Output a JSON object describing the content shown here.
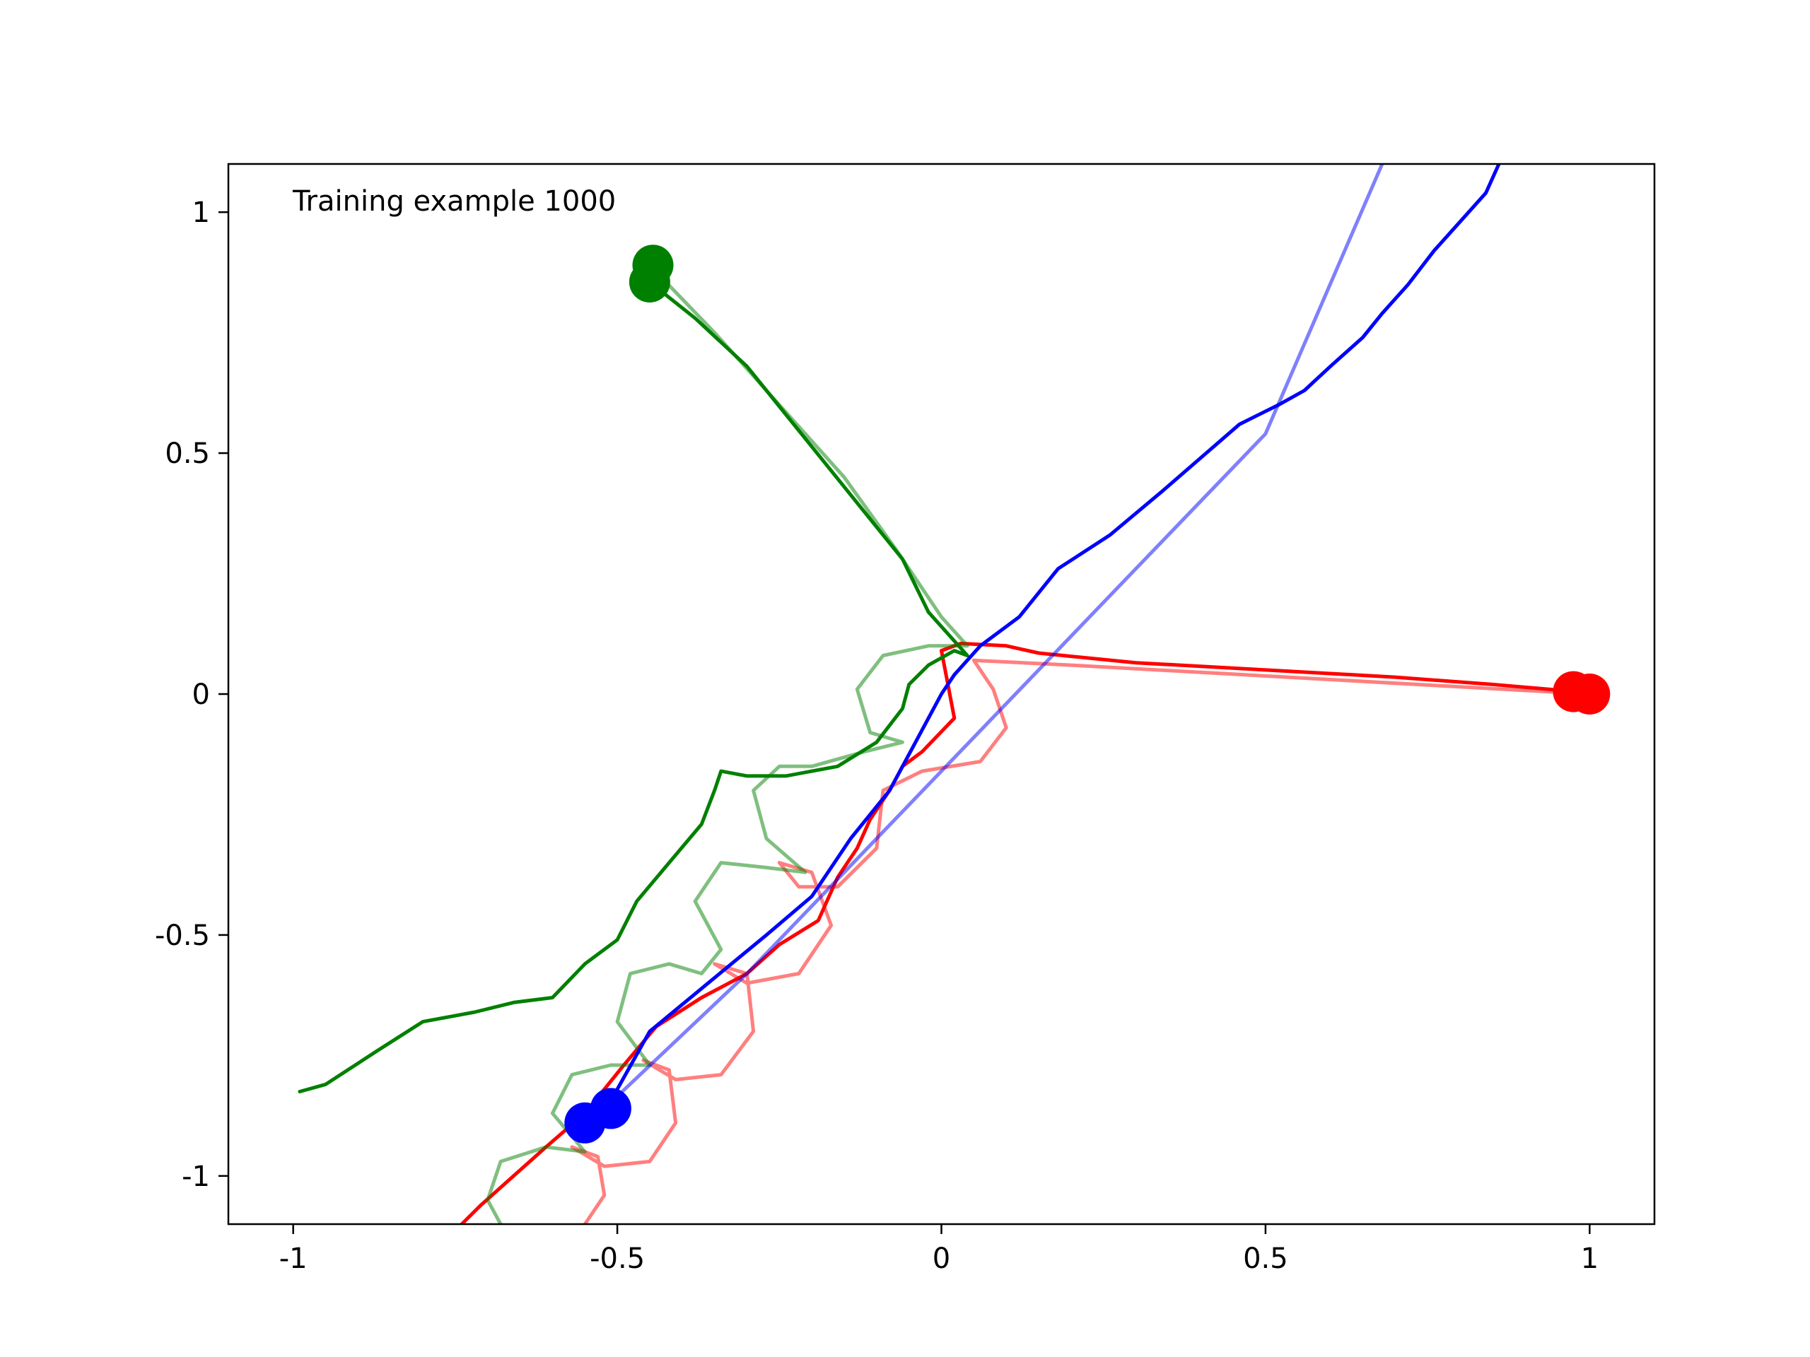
{
  "chart_data": {
    "type": "line",
    "title": "",
    "xlabel": "",
    "ylabel": "",
    "xlim": [
      -1.1,
      1.1
    ],
    "ylim": [
      -1.1,
      1.1
    ],
    "xticks": [
      -1,
      -0.5,
      0,
      0.5,
      1
    ],
    "xtick_labels": [
      "-1",
      "-0.5",
      "0",
      "0.5",
      "1"
    ],
    "yticks": [
      -1,
      -0.5,
      0,
      0.5,
      1
    ],
    "ytick_labels": [
      "-1",
      "-0.5",
      "0",
      "0.5",
      "1"
    ],
    "grid": false,
    "legend": "none",
    "annotation": "Training example 1000",
    "series": [
      {
        "color": "#ff0000",
        "style": "faded",
        "points": [
          [
            1.0,
            0.0
          ],
          [
            0.8,
            0.015
          ],
          [
            0.6,
            0.03
          ],
          [
            0.4,
            0.045
          ],
          [
            0.2,
            0.06
          ],
          [
            0.05,
            0.07
          ],
          [
            0.08,
            0.01
          ],
          [
            0.1,
            -0.07
          ],
          [
            0.06,
            -0.14
          ],
          [
            -0.03,
            -0.16
          ],
          [
            -0.09,
            -0.2
          ],
          [
            -0.1,
            -0.32
          ],
          [
            -0.16,
            -0.4
          ],
          [
            -0.22,
            -0.4
          ],
          [
            -0.25,
            -0.35
          ],
          [
            -0.2,
            -0.37
          ],
          [
            -0.17,
            -0.48
          ],
          [
            -0.22,
            -0.58
          ],
          [
            -0.3,
            -0.6
          ],
          [
            -0.35,
            -0.56
          ],
          [
            -0.3,
            -0.58
          ],
          [
            -0.29,
            -0.7
          ],
          [
            -0.34,
            -0.79
          ],
          [
            -0.41,
            -0.8
          ],
          [
            -0.46,
            -0.76
          ],
          [
            -0.42,
            -0.78
          ],
          [
            -0.41,
            -0.89
          ],
          [
            -0.45,
            -0.97
          ],
          [
            -0.52,
            -0.98
          ],
          [
            -0.57,
            -0.94
          ],
          [
            -0.53,
            -0.96
          ],
          [
            -0.52,
            -1.04
          ],
          [
            -0.55,
            -1.1
          ]
        ]
      },
      {
        "color": "#ff0000",
        "style": "solid",
        "points": [
          [
            0.98,
            0.005
          ],
          [
            0.85,
            0.02
          ],
          [
            0.7,
            0.035
          ],
          [
            0.5,
            0.05
          ],
          [
            0.3,
            0.065
          ],
          [
            0.15,
            0.085
          ],
          [
            0.1,
            0.1
          ],
          [
            0.03,
            0.105
          ],
          [
            0.0,
            0.09
          ],
          [
            0.01,
            0.02
          ],
          [
            0.02,
            -0.05
          ],
          [
            -0.03,
            -0.12
          ],
          [
            -0.06,
            -0.15
          ],
          [
            -0.08,
            -0.2
          ],
          [
            -0.11,
            -0.26
          ],
          [
            -0.13,
            -0.32
          ],
          [
            -0.16,
            -0.38
          ],
          [
            -0.19,
            -0.47
          ],
          [
            -0.25,
            -0.52
          ],
          [
            -0.3,
            -0.58
          ],
          [
            -0.37,
            -0.63
          ],
          [
            -0.44,
            -0.69
          ],
          [
            -0.49,
            -0.77
          ],
          [
            -0.55,
            -0.87
          ],
          [
            -0.61,
            -0.94
          ],
          [
            -0.66,
            -1.0
          ],
          [
            -0.71,
            -1.06
          ],
          [
            -0.74,
            -1.1
          ]
        ]
      },
      {
        "color": "#008000",
        "style": "faded",
        "points": [
          [
            -0.45,
            0.89
          ],
          [
            -0.35,
            0.75
          ],
          [
            -0.25,
            0.6
          ],
          [
            -0.15,
            0.45
          ],
          [
            -0.07,
            0.3
          ],
          [
            0.0,
            0.16
          ],
          [
            0.04,
            0.1
          ],
          [
            -0.02,
            0.1
          ],
          [
            -0.09,
            0.08
          ],
          [
            -0.13,
            0.01
          ],
          [
            -0.11,
            -0.08
          ],
          [
            -0.06,
            -0.1
          ],
          [
            -0.12,
            -0.12
          ],
          [
            -0.2,
            -0.15
          ],
          [
            -0.25,
            -0.15
          ],
          [
            -0.29,
            -0.2
          ],
          [
            -0.27,
            -0.3
          ],
          [
            -0.21,
            -0.37
          ],
          [
            -0.27,
            -0.36
          ],
          [
            -0.34,
            -0.35
          ],
          [
            -0.38,
            -0.43
          ],
          [
            -0.34,
            -0.53
          ],
          [
            -0.37,
            -0.58
          ],
          [
            -0.42,
            -0.56
          ],
          [
            -0.48,
            -0.58
          ],
          [
            -0.5,
            -0.68
          ],
          [
            -0.45,
            -0.77
          ],
          [
            -0.51,
            -0.77
          ],
          [
            -0.57,
            -0.79
          ],
          [
            -0.6,
            -0.87
          ],
          [
            -0.55,
            -0.95
          ],
          [
            -0.61,
            -0.94
          ],
          [
            -0.68,
            -0.97
          ],
          [
            -0.7,
            -1.05
          ],
          [
            -0.68,
            -1.1
          ]
        ]
      },
      {
        "color": "#008000",
        "style": "solid",
        "points": [
          [
            -0.45,
            0.855
          ],
          [
            -0.38,
            0.78
          ],
          [
            -0.3,
            0.68
          ],
          [
            -0.24,
            0.58
          ],
          [
            -0.18,
            0.48
          ],
          [
            -0.12,
            0.38
          ],
          [
            -0.06,
            0.28
          ],
          [
            -0.02,
            0.17
          ],
          [
            0.04,
            0.08
          ],
          [
            0.02,
            0.09
          ],
          [
            -0.02,
            0.06
          ],
          [
            -0.05,
            0.02
          ],
          [
            -0.06,
            -0.03
          ],
          [
            -0.1,
            -0.1
          ],
          [
            -0.16,
            -0.15
          ],
          [
            -0.24,
            -0.17
          ],
          [
            -0.3,
            -0.17
          ],
          [
            -0.34,
            -0.16
          ],
          [
            -0.35,
            -0.2
          ],
          [
            -0.37,
            -0.27
          ],
          [
            -0.42,
            -0.35
          ],
          [
            -0.47,
            -0.43
          ],
          [
            -0.5,
            -0.51
          ],
          [
            -0.55,
            -0.56
          ],
          [
            -0.6,
            -0.63
          ],
          [
            -0.66,
            -0.64
          ],
          [
            -0.72,
            -0.66
          ],
          [
            -0.8,
            -0.68
          ],
          [
            -0.87,
            -0.74
          ],
          [
            -0.95,
            -0.81
          ],
          [
            -0.99,
            -0.825
          ]
        ]
      },
      {
        "color": "#0000ff",
        "style": "faded",
        "points": [
          [
            -0.52,
            -0.86
          ],
          [
            -0.3,
            -0.58
          ],
          [
            -0.1,
            -0.3
          ],
          [
            0.1,
            -0.02
          ],
          [
            0.3,
            0.26
          ],
          [
            0.5,
            0.54
          ],
          [
            0.68,
            1.1
          ]
        ]
      },
      {
        "color": "#0000ff",
        "style": "solid",
        "points": [
          [
            -0.55,
            -0.89
          ],
          [
            -0.5,
            -0.82
          ],
          [
            -0.45,
            -0.7
          ],
          [
            -0.36,
            -0.6
          ],
          [
            -0.27,
            -0.5
          ],
          [
            -0.2,
            -0.42
          ],
          [
            -0.14,
            -0.3
          ],
          [
            -0.08,
            -0.2
          ],
          [
            -0.02,
            -0.05
          ],
          [
            0.0,
            0.0
          ],
          [
            0.02,
            0.04
          ],
          [
            0.06,
            0.1
          ],
          [
            0.12,
            0.16
          ],
          [
            0.18,
            0.26
          ],
          [
            0.26,
            0.33
          ],
          [
            0.34,
            0.42
          ],
          [
            0.4,
            0.49
          ],
          [
            0.46,
            0.56
          ],
          [
            0.52,
            0.6
          ],
          [
            0.56,
            0.63
          ],
          [
            0.6,
            0.68
          ],
          [
            0.65,
            0.74
          ],
          [
            0.68,
            0.79
          ],
          [
            0.72,
            0.85
          ],
          [
            0.76,
            0.92
          ],
          [
            0.8,
            0.98
          ],
          [
            0.84,
            1.04
          ],
          [
            0.86,
            1.1
          ]
        ]
      }
    ],
    "markers": [
      {
        "color": "#ff0000",
        "points": [
          [
            0.975,
            0.005
          ],
          [
            1.0,
            0.0
          ]
        ]
      },
      {
        "color": "#008000",
        "points": [
          [
            -0.445,
            0.89
          ],
          [
            -0.45,
            0.855
          ]
        ]
      },
      {
        "color": "#0000ff",
        "points": [
          [
            -0.51,
            -0.86
          ],
          [
            -0.55,
            -0.89
          ]
        ]
      }
    ]
  }
}
